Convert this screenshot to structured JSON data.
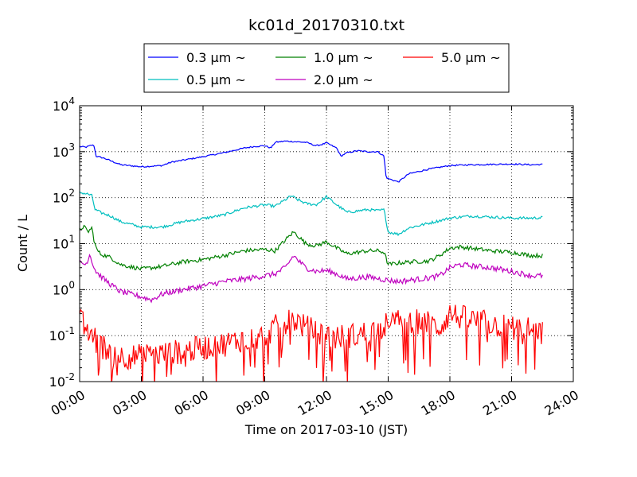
{
  "chart_data": {
    "type": "line",
    "title": "kc01d_20170310.txt",
    "xlabel": "Time on 2017-03-10 (JST)",
    "ylabel": "Count / L",
    "xlim": [
      0,
      24
    ],
    "ylim": [
      0.01,
      10000
    ],
    "yscale": "log",
    "grid": true,
    "legend_position": "top-center",
    "x_tick_labels": [
      "00:00",
      "03:00",
      "06:00",
      "09:00",
      "12:00",
      "15:00",
      "18:00",
      "21:00",
      "24:00"
    ],
    "y_tick_labels": [
      {
        "base": "10",
        "exp": "-2"
      },
      {
        "base": "10",
        "exp": "-1"
      },
      {
        "base": "10",
        "exp": "0"
      },
      {
        "base": "10",
        "exp": "1"
      },
      {
        "base": "10",
        "exp": "2"
      },
      {
        "base": "10",
        "exp": "3"
      },
      {
        "base": "10",
        "exp": "4"
      }
    ],
    "series": [
      {
        "name": "0.3 μm ~",
        "color": "#0000ff",
        "noise": 0.015,
        "x": [
          0.0,
          0.3,
          0.6,
          0.7,
          0.8,
          1.2,
          2.0,
          3.0,
          4.0,
          4.5,
          5.0,
          6.0,
          7.0,
          8.0,
          8.5,
          9.0,
          9.3,
          9.5,
          10.0,
          10.5,
          11.0,
          11.5,
          11.8,
          12.0,
          12.5,
          12.7,
          13.0,
          13.5,
          14.0,
          14.5,
          14.8,
          14.9,
          15.0,
          15.5,
          16.0,
          17.0,
          18.0,
          19.0,
          20.0,
          21.0,
          22.0,
          22.5
        ],
        "y": [
          1300,
          1250,
          1400,
          1350,
          800,
          720,
          520,
          470,
          500,
          600,
          650,
          780,
          950,
          1200,
          1300,
          1350,
          1200,
          1600,
          1700,
          1650,
          1600,
          1350,
          1450,
          1550,
          1200,
          800,
          950,
          1050,
          1000,
          1000,
          800,
          280,
          260,
          220,
          330,
          420,
          500,
          520,
          530,
          540,
          520,
          530
        ]
      },
      {
        "name": "0.5 μm ~",
        "color": "#00bfbf",
        "noise": 0.03,
        "x": [
          0.0,
          0.4,
          0.6,
          0.75,
          1.0,
          1.5,
          2.0,
          3.0,
          4.0,
          5.0,
          6.0,
          7.0,
          8.0,
          9.0,
          9.5,
          10.0,
          10.3,
          10.5,
          11.0,
          11.5,
          12.0,
          12.5,
          13.0,
          14.0,
          14.5,
          14.8,
          15.0,
          15.5,
          16.0,
          17.0,
          18.0,
          19.0,
          20.0,
          21.0,
          22.0,
          22.5
        ],
        "y": [
          130,
          120,
          110,
          55,
          48,
          40,
          30,
          23,
          23,
          30,
          35,
          42,
          60,
          70,
          65,
          90,
          110,
          95,
          75,
          70,
          105,
          70,
          48,
          55,
          52,
          55,
          18,
          16,
          22,
          28,
          36,
          40,
          38,
          36,
          36,
          37
        ]
      },
      {
        "name": "1.0 μm ~",
        "color": "#008000",
        "noise": 0.045,
        "x": [
          0.0,
          0.2,
          0.4,
          0.6,
          0.7,
          0.8,
          1.0,
          1.5,
          2.0,
          3.0,
          4.0,
          5.0,
          6.0,
          7.0,
          8.0,
          9.0,
          9.5,
          10.0,
          10.4,
          10.6,
          11.0,
          11.5,
          12.0,
          12.5,
          13.0,
          14.0,
          14.5,
          14.8,
          15.0,
          15.5,
          16.0,
          17.0,
          17.5,
          18.0,
          18.5,
          19.0,
          20.0,
          21.0,
          22.0,
          22.5
        ],
        "y": [
          20,
          24,
          18,
          22,
          12,
          8,
          6,
          5,
          3.5,
          2.8,
          3.2,
          4,
          4.5,
          5.5,
          7,
          7.5,
          7,
          12,
          18,
          15,
          10,
          9,
          11,
          8,
          6,
          7,
          7,
          6.5,
          3.5,
          3.8,
          4,
          4.2,
          5.5,
          8,
          8.5,
          8,
          7,
          6.5,
          5.5,
          5.5
        ]
      },
      {
        "name": "2.0 μm ~",
        "color": "#bf00bf",
        "noise": 0.06,
        "x": [
          0.0,
          0.3,
          0.5,
          0.7,
          0.8,
          1.0,
          1.5,
          2.0,
          3.0,
          3.5,
          4.0,
          5.0,
          6.0,
          7.0,
          8.0,
          9.0,
          9.5,
          10.0,
          10.4,
          10.7,
          11.0,
          11.5,
          12.0,
          12.5,
          13.0,
          14.0,
          15.0,
          15.5,
          16.0,
          17.0,
          17.5,
          18.0,
          18.5,
          19.0,
          20.0,
          21.0,
          22.0,
          22.5
        ],
        "y": [
          4,
          3.5,
          6,
          3,
          2.5,
          2,
          1.3,
          0.9,
          0.7,
          0.6,
          0.8,
          1,
          1.2,
          1.5,
          1.7,
          2,
          2.2,
          3,
          5.5,
          4,
          3,
          2.5,
          2.6,
          2.2,
          1.7,
          1.9,
          1.6,
          1.5,
          1.6,
          1.8,
          2,
          3,
          3.5,
          3.3,
          3,
          2.5,
          2,
          2
        ]
      },
      {
        "name": "5.0 μm ~",
        "color": "#ff0000",
        "noise": 0.28,
        "x": [
          0.0,
          0.3,
          0.6,
          1.0,
          1.5,
          2.0,
          3.0,
          4.0,
          5.0,
          6.0,
          7.0,
          8.0,
          9.0,
          9.5,
          10.0,
          10.5,
          11.0,
          11.5,
          12.0,
          12.5,
          13.0,
          13.5,
          14.0,
          14.5,
          15.0,
          15.5,
          16.0,
          16.5,
          17.0,
          17.5,
          18.0,
          18.5,
          19.0,
          19.5,
          20.0,
          21.0,
          22.0,
          22.5
        ],
        "y": [
          0.22,
          0.15,
          0.1,
          0.06,
          0.05,
          0.035,
          0.035,
          0.04,
          0.045,
          0.055,
          0.065,
          0.085,
          0.1,
          0.15,
          0.2,
          0.22,
          0.15,
          0.12,
          0.1,
          0.09,
          0.1,
          0.1,
          0.12,
          0.14,
          0.18,
          0.2,
          0.22,
          0.2,
          0.18,
          0.15,
          0.3,
          0.25,
          0.22,
          0.2,
          0.18,
          0.15,
          0.13,
          0.11
        ]
      }
    ]
  }
}
